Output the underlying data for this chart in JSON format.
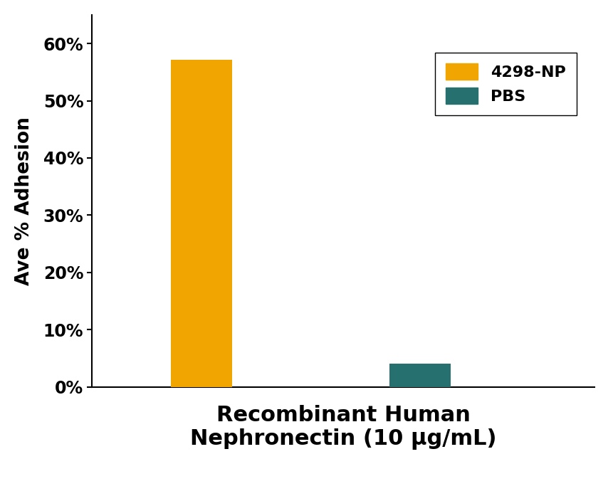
{
  "categories": [
    "4298-NP",
    "PBS"
  ],
  "values": [
    0.572,
    0.04
  ],
  "bar_colors": [
    "#F0A500",
    "#267070"
  ],
  "bar_width": 0.28,
  "bar_positions": [
    1,
    2
  ],
  "xlabel": "Recombinant Human\nNephronectin (10 μg/mL)",
  "ylabel": "Ave % Adhesion",
  "ylim": [
    0,
    0.65
  ],
  "xlim": [
    0.5,
    2.8
  ],
  "yticks": [
    0.0,
    0.1,
    0.2,
    0.3,
    0.4,
    0.5,
    0.6
  ],
  "ytick_labels": [
    "0%",
    "10%",
    "20%",
    "30%",
    "40%",
    "50%",
    "60%"
  ],
  "legend_labels": [
    "4298-NP",
    "PBS"
  ],
  "legend_colors": [
    "#F0A500",
    "#267070"
  ],
  "background_color": "#ffffff",
  "ylabel_fontsize": 19,
  "tick_fontsize": 17,
  "legend_fontsize": 16,
  "xlabel_fontsize": 22
}
